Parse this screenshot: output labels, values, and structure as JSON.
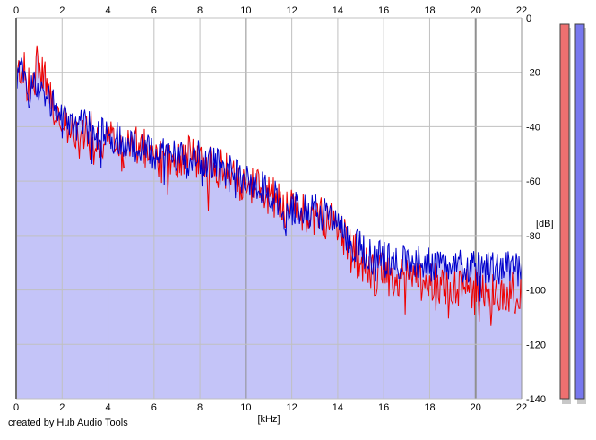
{
  "credit": "created by Hub Audio Tools",
  "chart_data": {
    "type": "area",
    "xlabel": "[kHz]",
    "ylabel": "[dB]",
    "xlim": [
      0,
      22
    ],
    "ylim": [
      -140,
      0
    ],
    "x_ticks": [
      0,
      2,
      4,
      6,
      8,
      10,
      12,
      14,
      16,
      18,
      20,
      22
    ],
    "y_ticks": [
      0,
      -20,
      -40,
      -60,
      -80,
      -100,
      -120,
      -140
    ],
    "grid": true,
    "colors": {
      "fill": "#c4c4f8",
      "grid": "#c0c0c0",
      "grid_major": "#909090",
      "channel_1": "#ee0000",
      "channel_2": "#0000cc",
      "meter_1": "#ee7070",
      "meter_2": "#7878ee"
    },
    "level_meters": [
      {
        "channel": 1,
        "level": 1.0
      },
      {
        "channel": 2,
        "level": 1.0
      }
    ],
    "series": [
      {
        "values_x": [
          0,
          0.25,
          0.5,
          0.75,
          1,
          1.5,
          2,
          2.5,
          3,
          3.5,
          4,
          4.5,
          5,
          5.5,
          6,
          6.5,
          7,
          7.5,
          8,
          8.5,
          9,
          9.5,
          10,
          10.5,
          11,
          11.5,
          12,
          12.5,
          13,
          13.5,
          14,
          14.5,
          15,
          15.5,
          16,
          16.5,
          17,
          17.5,
          18,
          18.5,
          19,
          19.5,
          20,
          20.5,
          21,
          21.5,
          22
        ],
        "values": [
          -24,
          -16,
          -26,
          -23,
          -15,
          -30,
          -39,
          -40,
          -41,
          -43,
          -45,
          -47,
          -48,
          -48,
          -52,
          -53,
          -51,
          -50,
          -52,
          -55,
          -56,
          -57,
          -60,
          -62,
          -65,
          -68,
          -71,
          -72,
          -72,
          -74,
          -75,
          -83,
          -90,
          -94,
          -94,
          -95,
          -96,
          -96,
          -97,
          -97,
          -98,
          -99,
          -100,
          -100,
          -101,
          -101,
          -101
        ]
      },
      {
        "values_x": [
          0,
          0.25,
          0.5,
          0.75,
          1,
          1.5,
          2,
          2.5,
          3,
          3.5,
          4,
          4.5,
          5,
          5.5,
          6,
          6.5,
          7,
          7.5,
          8,
          8.5,
          9,
          9.5,
          10,
          10.5,
          11,
          11.5,
          12,
          12.5,
          13,
          13.5,
          14,
          14.5,
          15,
          15.5,
          16,
          16.5,
          17,
          17.5,
          18,
          18.5,
          19,
          19.5,
          20,
          20.5,
          21,
          21.5,
          22
        ],
        "values": [
          -22,
          -20,
          -27,
          -25,
          -25,
          -30,
          -38,
          -40,
          -40,
          -42,
          -43,
          -44,
          -46,
          -48,
          -50,
          -50,
          -50,
          -50,
          -51,
          -53,
          -55,
          -57,
          -60,
          -61,
          -64,
          -67,
          -70,
          -71,
          -70,
          -73,
          -75,
          -82,
          -85,
          -88,
          -88,
          -89,
          -90,
          -90,
          -91,
          -91,
          -91,
          -92,
          -92,
          -92,
          -92,
          -92,
          -93
        ]
      }
    ]
  }
}
